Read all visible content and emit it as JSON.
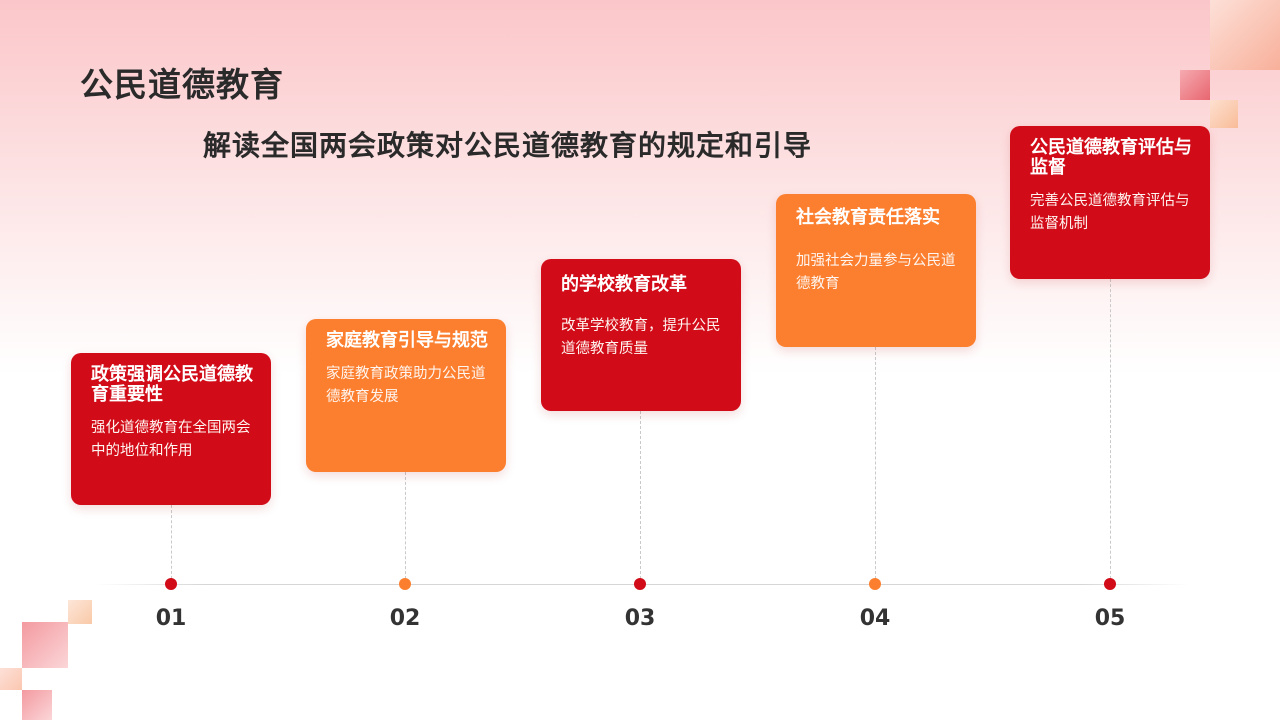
{
  "header": {
    "title": "公民道德教育",
    "subtitle": "解读全国两会政策对公民道德教育的规定和引导"
  },
  "timeline": [
    {
      "number": "01",
      "title": "政策强调公民道德教育重要性",
      "description": "强化道德教育在全国两会中的地位和作用",
      "color": "#d10b18"
    },
    {
      "number": "02",
      "title": "家庭教育引导与规范",
      "description": "家庭教育政策助力公民道德教育发展",
      "color": "#fb7f2e"
    },
    {
      "number": "03",
      "title": "的学校教育改革",
      "description": "改革学校教育，提升公民道德教育质量",
      "color": "#d10b18"
    },
    {
      "number": "04",
      "title": "社会教育责任落实",
      "description": "加强社会力量参与公民道德教育",
      "color": "#fb7f2e"
    },
    {
      "number": "05",
      "title": "公民道德教育评估与监督",
      "description": "完善公民道德教育评估与监督机制",
      "color": "#d10b18"
    }
  ]
}
